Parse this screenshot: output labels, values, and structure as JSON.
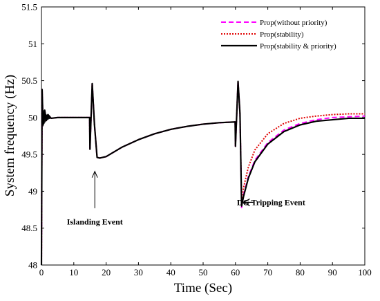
{
  "chart_data": {
    "type": "line",
    "xlabel": "Time (Sec)",
    "ylabel": "System frequency (Hz)",
    "xlim": [
      0,
      100
    ],
    "ylim": [
      48,
      51.5
    ],
    "xticks": [
      0,
      10,
      20,
      30,
      40,
      50,
      60,
      70,
      80,
      90,
      100
    ],
    "yticks": [
      48,
      48.5,
      49,
      49.5,
      50,
      50.5,
      51,
      51.5
    ],
    "grid": false,
    "legend_position": "top-right",
    "series": [
      {
        "name": "Prop(without priority)",
        "color": "#ff00ff",
        "style": "dashed",
        "x": [
          0,
          0.2,
          0.5,
          1,
          1.5,
          2,
          3,
          5,
          10,
          14.9,
          15,
          15.7,
          16.4,
          17.2,
          18,
          20,
          25,
          30,
          35,
          40,
          45,
          50,
          55,
          59.9,
          60,
          60.8,
          61.4,
          61.9,
          62.5,
          64,
          66,
          70,
          75,
          80,
          85,
          90,
          95,
          100
        ],
        "y": [
          48,
          50.38,
          49.9,
          50.1,
          49.96,
          50.04,
          49.99,
          50,
          50,
          50,
          49.57,
          50.46,
          49.9,
          49.46,
          49.45,
          49.47,
          49.6,
          49.7,
          49.78,
          49.84,
          49.88,
          49.91,
          49.93,
          49.94,
          49.61,
          50.49,
          50.05,
          48.78,
          48.95,
          49.2,
          49.42,
          49.66,
          49.83,
          49.92,
          49.97,
          50.0,
          50.01,
          50.02
        ]
      },
      {
        "name": "Prop(stability)",
        "color": "#e00000",
        "style": "dotted",
        "x": [
          0,
          0.2,
          0.5,
          1,
          1.5,
          2,
          3,
          5,
          10,
          14.9,
          15,
          15.7,
          16.4,
          17.2,
          18,
          20,
          25,
          30,
          35,
          40,
          45,
          50,
          55,
          59.9,
          60,
          60.8,
          61.4,
          61.9,
          62.5,
          64,
          66,
          70,
          75,
          80,
          85,
          90,
          95,
          100
        ],
        "y": [
          48,
          50.38,
          49.9,
          50.1,
          49.96,
          50.04,
          49.99,
          50,
          50,
          50,
          49.57,
          50.46,
          49.9,
          49.46,
          49.45,
          49.47,
          49.6,
          49.7,
          49.78,
          49.84,
          49.88,
          49.91,
          49.93,
          49.94,
          49.61,
          50.49,
          50.05,
          48.85,
          49.05,
          49.33,
          49.56,
          49.78,
          49.92,
          49.99,
          50.02,
          50.04,
          50.05,
          50.05
        ]
      },
      {
        "name": "Prop(stability & priority)",
        "color": "#000000",
        "style": "solid",
        "x": [
          0,
          0.2,
          0.5,
          1,
          1.5,
          2,
          3,
          5,
          10,
          14.9,
          15,
          15.7,
          16.4,
          17.2,
          18,
          20,
          25,
          30,
          35,
          40,
          45,
          50,
          55,
          59.9,
          60,
          60.8,
          61.4,
          61.9,
          62.5,
          64,
          66,
          70,
          75,
          80,
          85,
          90,
          95,
          100
        ],
        "y": [
          48,
          50.38,
          49.9,
          50.1,
          49.96,
          50.04,
          49.99,
          50,
          50,
          50,
          49.57,
          50.46,
          49.9,
          49.46,
          49.45,
          49.47,
          49.6,
          49.7,
          49.78,
          49.84,
          49.88,
          49.91,
          49.93,
          49.94,
          49.61,
          50.49,
          50.05,
          48.8,
          48.93,
          49.18,
          49.4,
          49.64,
          49.81,
          49.9,
          49.95,
          49.97,
          49.99,
          49.99
        ]
      }
    ],
    "annotations": [
      {
        "text": "Islanding Event",
        "x": 16.5,
        "y": 48.55,
        "arrow_to": [
          16.5,
          49.27
        ]
      },
      {
        "text": "DG Tripping Event",
        "x": 71,
        "y": 48.85,
        "arrow_to": [
          62.5,
          48.85
        ]
      }
    ]
  }
}
